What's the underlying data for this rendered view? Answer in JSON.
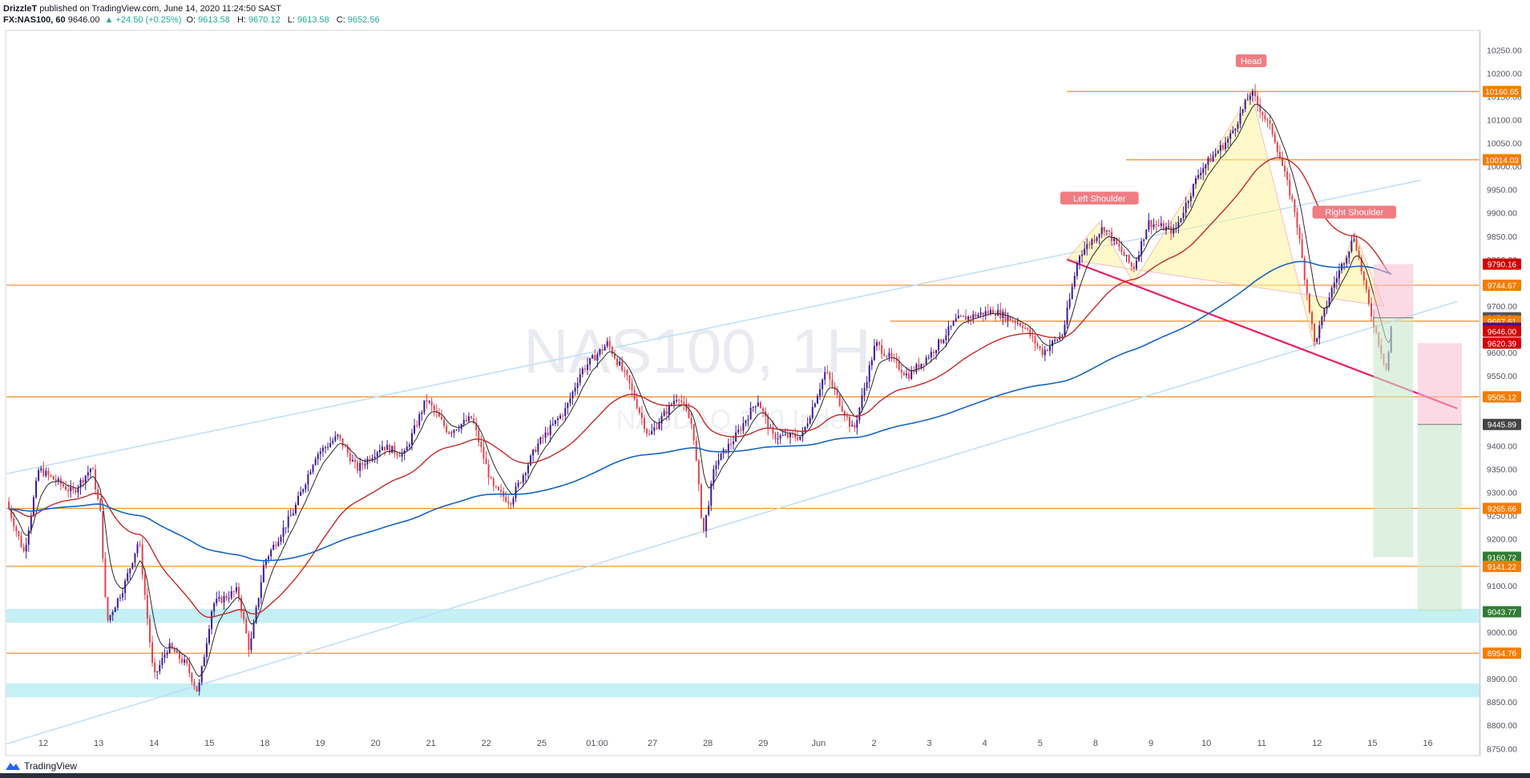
{
  "header": {
    "author": "DrizzleT",
    "published_text": "published on TradingView.com, June 14, 2020 11:24:50 SAST",
    "symbol": "FX:NAS100, 60",
    "last": "9646.00",
    "change": "▲ +24.50 (+0.25%)",
    "o_label": "O:",
    "o": "9613.58",
    "h_label": "H:",
    "h": "9670.12",
    "l_label": "L:",
    "l": "9613.58",
    "c_label": "C:",
    "c": "9652.56"
  },
  "watermark": {
    "line1": "NAS100, 1H",
    "line2": "NASDAQ 100 Index"
  },
  "footer": {
    "brand": "TradingView",
    "logo_icon": "tradingview-logo-icon"
  },
  "colors": {
    "bull": "#3d1a96",
    "bear": "#e0454f",
    "ema_fast": "#2a2a2a",
    "ema_mid": "#c62828",
    "ema_slow": "#1565c0",
    "level": "#f59331",
    "zone": "#b2ebf2",
    "channel": "#bbdefb",
    "pattern_fill": "#fff59d",
    "pattern_stroke": "#ef9a9a",
    "neckline": "#e91e63"
  },
  "chart_data": {
    "type": "candlestick",
    "timeframe": "1H",
    "ylim": [
      8735,
      10290
    ],
    "y_ticks": [
      10250,
      10200,
      10150,
      10100,
      10050,
      10000,
      9950,
      9900,
      9850,
      9800,
      9750,
      9700,
      9650,
      9600,
      9550,
      9500,
      9450,
      9400,
      9350,
      9300,
      9250,
      9200,
      9150,
      9100,
      9050,
      9000,
      8950,
      8900,
      8850,
      8800,
      8750
    ],
    "x_ticks": [
      "12",
      "13",
      "14",
      "15",
      "18",
      "19",
      "20",
      "21",
      "22",
      "25",
      "01:00",
      "27",
      "28",
      "29",
      "Jun",
      "2",
      "3",
      "4",
      "5",
      "8",
      "9",
      "10",
      "11",
      "12",
      "15",
      "16"
    ],
    "price_path": [
      [
        0,
        9280
      ],
      [
        0.012,
        9170
      ],
      [
        0.022,
        9350
      ],
      [
        0.045,
        9300
      ],
      [
        0.058,
        9355
      ],
      [
        0.064,
        9250
      ],
      [
        0.068,
        9020
      ],
      [
        0.08,
        9100
      ],
      [
        0.09,
        9200
      ],
      [
        0.1,
        8900
      ],
      [
        0.11,
        8970
      ],
      [
        0.122,
        8930
      ],
      [
        0.13,
        8870
      ],
      [
        0.14,
        9060
      ],
      [
        0.157,
        9090
      ],
      [
        0.165,
        8960
      ],
      [
        0.175,
        9150
      ],
      [
        0.195,
        9260
      ],
      [
        0.21,
        9380
      ],
      [
        0.225,
        9420
      ],
      [
        0.238,
        9350
      ],
      [
        0.255,
        9400
      ],
      [
        0.27,
        9380
      ],
      [
        0.285,
        9500
      ],
      [
        0.3,
        9430
      ],
      [
        0.316,
        9460
      ],
      [
        0.33,
        9310
      ],
      [
        0.342,
        9280
      ],
      [
        0.36,
        9400
      ],
      [
        0.38,
        9480
      ],
      [
        0.39,
        9560
      ],
      [
        0.408,
        9620
      ],
      [
        0.422,
        9540
      ],
      [
        0.436,
        9420
      ],
      [
        0.456,
        9510
      ],
      [
        0.466,
        9440
      ],
      [
        0.473,
        9210
      ],
      [
        0.481,
        9360
      ],
      [
        0.495,
        9420
      ],
      [
        0.51,
        9500
      ],
      [
        0.52,
        9420
      ],
      [
        0.54,
        9420
      ],
      [
        0.556,
        9560
      ],
      [
        0.575,
        9430
      ],
      [
        0.59,
        9620
      ],
      [
        0.612,
        9550
      ],
      [
        0.628,
        9600
      ],
      [
        0.645,
        9670
      ],
      [
        0.67,
        9690
      ],
      [
        0.69,
        9660
      ],
      [
        0.703,
        9600
      ],
      [
        0.717,
        9640
      ],
      [
        0.728,
        9810
      ],
      [
        0.745,
        9870
      ],
      [
        0.765,
        9780
      ],
      [
        0.775,
        9880
      ],
      [
        0.793,
        9860
      ],
      [
        0.81,
        9990
      ],
      [
        0.83,
        10060
      ],
      [
        0.845,
        10160
      ],
      [
        0.86,
        10070
      ],
      [
        0.875,
        9900
      ],
      [
        0.888,
        9620
      ],
      [
        0.9,
        9740
      ],
      [
        0.915,
        9850
      ],
      [
        0.925,
        9700
      ],
      [
        0.937,
        9560
      ],
      [
        0.94,
        9652.56
      ]
    ],
    "levels": [
      {
        "name": "10160.65",
        "value": 10160.65,
        "color": "#f59331",
        "start": 0.72
      },
      {
        "name": "10014.03",
        "value": 10014.03,
        "color": "#f59331",
        "start": 0.76
      },
      {
        "name": "9744.67",
        "value": 9744.67,
        "color": "#f59331",
        "start": 0
      },
      {
        "name": "9667.61",
        "value": 9667.61,
        "color": "#f59331",
        "start": 0.6
      },
      {
        "name": "9505.12",
        "value": 9505.12,
        "color": "#f59331",
        "start": 0
      },
      {
        "name": "9265.66",
        "value": 9265.66,
        "color": "#f59331",
        "start": 0
      },
      {
        "name": "9141.22",
        "value": 9141.22,
        "color": "#f59331",
        "start": 0
      },
      {
        "name": "8954.76",
        "value": 8954.76,
        "color": "#f59331",
        "start": 0
      }
    ],
    "zones": [
      {
        "from": 9020,
        "to": 9050
      },
      {
        "from": 8860,
        "to": 8890
      }
    ],
    "price_labels": [
      {
        "text": "10160.65",
        "value": 10160.65,
        "bg": "#f57c00"
      },
      {
        "text": "10014.03",
        "value": 10014.03,
        "bg": "#f57c00"
      },
      {
        "text": "9790.16",
        "value": 9790.16,
        "bg": "#d50000"
      },
      {
        "text": "9744.67",
        "value": 9744.67,
        "bg": "#f57c00"
      },
      {
        "text": "9674.84",
        "value": 9674.84,
        "bg": "#555555"
      },
      {
        "text": "9667.61",
        "value": 9667.61,
        "bg": "#f57c00"
      },
      {
        "text": "9652.56",
        "value": 9652.56,
        "bg": "#4a148c"
      },
      {
        "text": "9646.00",
        "value": 9646.0,
        "bg": "#d50000"
      },
      {
        "text": "9620.39",
        "value": 9620.39,
        "bg": "#d50000"
      },
      {
        "text": "9505.12",
        "value": 9505.12,
        "bg": "#f57c00"
      },
      {
        "text": "9445.89",
        "value": 9445.89,
        "bg": "#444444"
      },
      {
        "text": "9265.66",
        "value": 9265.66,
        "bg": "#f57c00"
      },
      {
        "text": "9160.72",
        "value": 9160.72,
        "bg": "#2e7d32"
      },
      {
        "text": "9141.22",
        "value": 9141.22,
        "bg": "#f57c00"
      },
      {
        "text": "9043.77",
        "value": 9043.77,
        "bg": "#2e7d32"
      },
      {
        "text": "8954.76",
        "value": 8954.76,
        "bg": "#f57c00"
      }
    ],
    "annotations": [
      {
        "text": "Head",
        "x": 0.845,
        "value": 10225
      },
      {
        "text": "Left Shoulder",
        "x": 0.742,
        "value": 9930
      },
      {
        "text": "Right Shoulder",
        "x": 0.915,
        "value": 9900
      }
    ],
    "pattern": {
      "points": [
        [
          0.72,
          9800
        ],
        [
          0.742,
          9880
        ],
        [
          0.765,
          9750
        ],
        [
          0.845,
          10160
        ],
        [
          0.888,
          9610
        ],
        [
          0.915,
          9860
        ],
        [
          0.935,
          9700
        ]
      ],
      "neckline": [
        [
          0.72,
          9800
        ],
        [
          0.985,
          9480
        ]
      ]
    },
    "channel": {
      "upper": [
        [
          0,
          9340
        ],
        [
          0.96,
          9970
        ]
      ],
      "lower": [
        [
          0,
          8760
        ],
        [
          0.985,
          9710
        ]
      ]
    },
    "trades": [
      {
        "x0": 0.928,
        "x1": 0.955,
        "entry": 9674.84,
        "stop": 9790.16,
        "target": 9160.72
      },
      {
        "x0": 0.958,
        "x1": 0.988,
        "entry": 9445.89,
        "stop": 9620.39,
        "target": 9043.77
      }
    ]
  }
}
